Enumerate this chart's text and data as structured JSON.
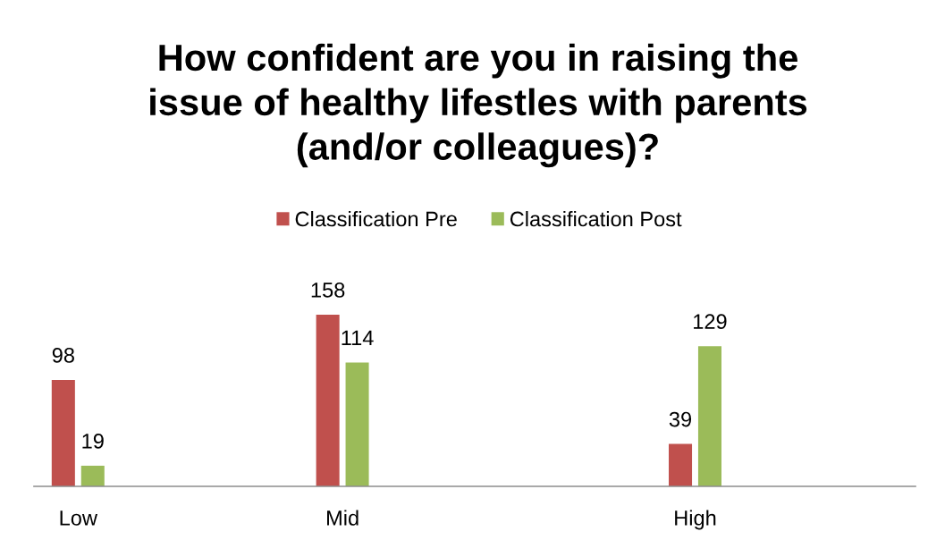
{
  "chart_data": {
    "type": "bar",
    "title": "How confident are you in raising the\nissue of healthy lifestles with parents\n(and/or colleagues)?",
    "categories": [
      "Low",
      null,
      null,
      "Mid",
      null,
      null,
      null,
      "High",
      null,
      null
    ],
    "series": [
      {
        "name": "Classification Pre",
        "color": "#c0504d",
        "values": [
          98,
          null,
          null,
          158,
          null,
          null,
          null,
          39,
          null,
          null
        ]
      },
      {
        "name": "Classification Post",
        "color": "#9bbb59",
        "values": [
          19,
          null,
          null,
          114,
          null,
          null,
          null,
          129,
          null,
          null
        ]
      }
    ],
    "tick_labels": "x",
    "data_labels": true,
    "legend": "top"
  }
}
